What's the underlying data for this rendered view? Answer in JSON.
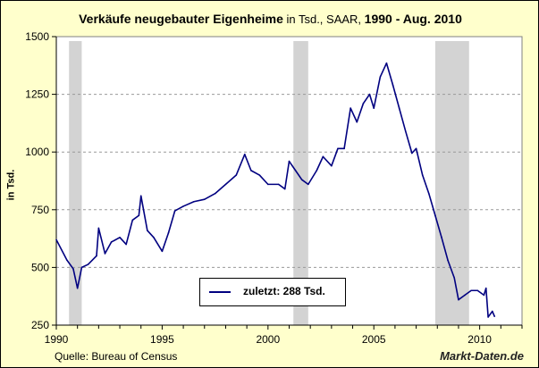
{
  "chart_data": {
    "type": "line",
    "title_parts": [
      {
        "text": "Verkäufe neugebauter Eigenheime",
        "bold": true
      },
      {
        "text": " in Tsd., SAAR, ",
        "bold": false
      },
      {
        "text": "1990 -  Aug. 2010",
        "bold": true
      }
    ],
    "ylabel": "in Tsd.",
    "xlabel": "",
    "xlim": [
      1990,
      2012
    ],
    "ylim": [
      250,
      1500
    ],
    "x_ticks": [
      1990,
      1995,
      2000,
      2005,
      2010
    ],
    "y_ticks": [
      250,
      500,
      750,
      1000,
      1250,
      1500
    ],
    "grid": "horizontal dashed",
    "line_color": "#000080",
    "shade_color": "#d3d3d3",
    "recessions": [
      [
        1990.6,
        1991.2
      ],
      [
        2001.2,
        2001.9
      ],
      [
        2007.9,
        2009.5
      ]
    ],
    "legend": {
      "text": "zuletzt: 288  Tsd.",
      "position": "bottom-center"
    },
    "series": [
      {
        "x": [
          1990.0,
          1990.5,
          1990.8,
          1991.0,
          1991.2,
          1991.5,
          1991.9,
          1992.0,
          1992.3,
          1992.6,
          1993.0,
          1993.3,
          1993.6,
          1993.9,
          1994.0,
          1994.3,
          1994.6,
          1995.0,
          1995.3,
          1995.6,
          1996.0,
          1996.5,
          1997.0,
          1997.5,
          1998.0,
          1998.5,
          1998.9,
          1999.2,
          1999.6,
          2000.0,
          2000.5,
          2000.8,
          2001.0,
          2001.3,
          2001.6,
          2001.9,
          2002.3,
          2002.6,
          2003.0,
          2003.3,
          2003.6,
          2003.9,
          2004.2,
          2004.5,
          2004.8,
          2005.0,
          2005.3,
          2005.6,
          2005.9,
          2006.2,
          2006.5,
          2006.8,
          2007.0,
          2007.3,
          2007.6,
          2007.9,
          2008.2,
          2008.5,
          2008.8,
          2009.0,
          2009.3,
          2009.6,
          2009.9,
          2010.2,
          2010.3,
          2010.4,
          2010.6,
          2010.7
        ],
        "y": [
          620,
          532,
          494,
          410,
          500,
          513,
          550,
          670,
          560,
          610,
          630,
          600,
          705,
          725,
          810,
          660,
          630,
          570,
          650,
          745,
          765,
          785,
          795,
          820,
          860,
          900,
          990,
          920,
          900,
          860,
          860,
          840,
          960,
          920,
          880,
          860,
          920,
          980,
          940,
          1015,
          1015,
          1190,
          1130,
          1210,
          1250,
          1190,
          1325,
          1385,
          1290,
          1190,
          1090,
          995,
          1015,
          900,
          820,
          725,
          630,
          530,
          455,
          360,
          380,
          400,
          400,
          380,
          410,
          285,
          310,
          288
        ]
      }
    ]
  },
  "footer": {
    "source": "Quelle: Bureau of Census",
    "brand": "Markt-Daten.de"
  }
}
